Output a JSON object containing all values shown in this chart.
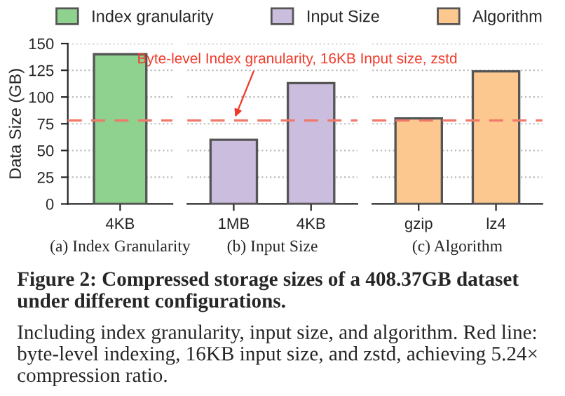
{
  "chart_data": [
    {
      "type": "bar",
      "xlabel": "(a) Index Granularity",
      "ylabel": "Data Size (GB)",
      "categories": [
        "4KB"
      ],
      "series": [
        {
          "name": "Index granularity",
          "color": "#8fd18f",
          "values": [
            140
          ]
        }
      ],
      "ylim": [
        0,
        150
      ],
      "yticks": [
        0,
        25,
        50,
        75,
        100,
        125,
        150
      ],
      "grid": "y",
      "legend": "top",
      "ref_lines": [
        {
          "axis": "y",
          "value": 78,
          "color": "#f07a6a",
          "line_style": "dashed"
        }
      ],
      "annotations": [
        "Figure 2: Compressed storage sizes of a 408.37GB dataset under different configurations.",
        "Including index granularity, input size, and algorithm. Red line: byte-level indexing, 16KB input size, and zstd, achieving 5.24× compression ratio."
      ]
    },
    {
      "type": "bar",
      "xlabel": "(b) Input Size",
      "categories": [
        "1MB",
        "4KB"
      ],
      "series": [
        {
          "name": "Input Size",
          "color": "#cbbddd",
          "values": [
            60,
            113
          ]
        }
      ],
      "ylim": [
        0,
        150
      ],
      "yticks": [
        0,
        25,
        50,
        75,
        100,
        125,
        150
      ],
      "grid": "y",
      "legend": "top",
      "tick_labels": "x",
      "ref_lines": [
        {
          "axis": "y",
          "value": 78,
          "color": "#f07a6a",
          "line_style": "dashed"
        }
      ],
      "annotations": [
        {
          "text": "Byte-level Index granularity, 16KB Input size, zstd",
          "x": "1MB",
          "y": 78
        }
      ]
    },
    {
      "type": "bar",
      "xlabel": "(c) Algorithm",
      "categories": [
        "gzip",
        "lz4"
      ],
      "series": [
        {
          "name": "Algorithm",
          "color": "#fdc890",
          "values": [
            80,
            124
          ]
        }
      ],
      "ylim": [
        0,
        150
      ],
      "yticks": [
        0,
        25,
        50,
        75,
        100,
        125,
        150
      ],
      "grid": "y",
      "legend": "top",
      "tick_labels": "x",
      "ref_lines": [
        {
          "axis": "y",
          "value": 78,
          "color": "#f07a6a",
          "line_style": "dashed"
        }
      ]
    }
  ]
}
